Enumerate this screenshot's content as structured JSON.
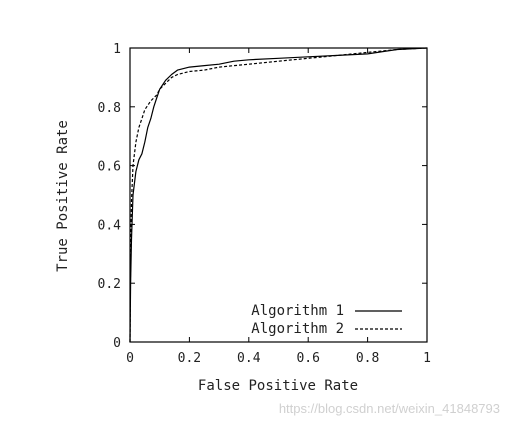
{
  "chart_data": {
    "type": "line",
    "xlabel": "False Positive Rate",
    "ylabel": "True Positive Rate",
    "xlim": [
      0,
      1
    ],
    "ylim": [
      0,
      1
    ],
    "xticks": [
      0,
      0.2,
      0.4,
      0.6,
      0.8,
      1
    ],
    "xtick_labels": [
      "0",
      "0.2",
      "0.4",
      "0.6",
      "0.8",
      "1"
    ],
    "yticks": [
      0,
      0.2,
      0.4,
      0.6,
      0.8,
      1
    ],
    "ytick_labels": [
      "0",
      "0.2",
      "0.4",
      "0.6",
      "0.8",
      "1"
    ],
    "grid": false,
    "legend_position": "bottom-right",
    "series": [
      {
        "name": "Algorithm 1",
        "style": "solid",
        "color": "#000000",
        "x": [
          0,
          0.002,
          0.005,
          0.01,
          0.02,
          0.03,
          0.04,
          0.05,
          0.06,
          0.07,
          0.08,
          0.09,
          0.1,
          0.12,
          0.14,
          0.16,
          0.18,
          0.2,
          0.25,
          0.3,
          0.35,
          0.4,
          0.5,
          0.6,
          0.7,
          0.8,
          0.9,
          1.0
        ],
        "y": [
          0,
          0.2,
          0.35,
          0.5,
          0.58,
          0.62,
          0.64,
          0.68,
          0.73,
          0.76,
          0.8,
          0.83,
          0.86,
          0.89,
          0.91,
          0.925,
          0.93,
          0.935,
          0.94,
          0.945,
          0.955,
          0.96,
          0.965,
          0.97,
          0.975,
          0.98,
          0.995,
          1.0
        ]
      },
      {
        "name": "Algorithm 2",
        "style": "dashed",
        "color": "#000000",
        "x": [
          0,
          0.002,
          0.005,
          0.01,
          0.02,
          0.03,
          0.04,
          0.05,
          0.07,
          0.09,
          0.1,
          0.12,
          0.14,
          0.16,
          0.18,
          0.2,
          0.25,
          0.3,
          0.4,
          0.5,
          0.6,
          0.7,
          0.8,
          0.9,
          1.0
        ],
        "y": [
          0,
          0.3,
          0.48,
          0.6,
          0.68,
          0.73,
          0.76,
          0.79,
          0.82,
          0.84,
          0.86,
          0.88,
          0.9,
          0.91,
          0.915,
          0.92,
          0.925,
          0.935,
          0.945,
          0.955,
          0.965,
          0.975,
          0.985,
          0.995,
          1.0
        ]
      }
    ]
  },
  "watermark_text": "https://blog.csdn.net/weixin_41848793"
}
